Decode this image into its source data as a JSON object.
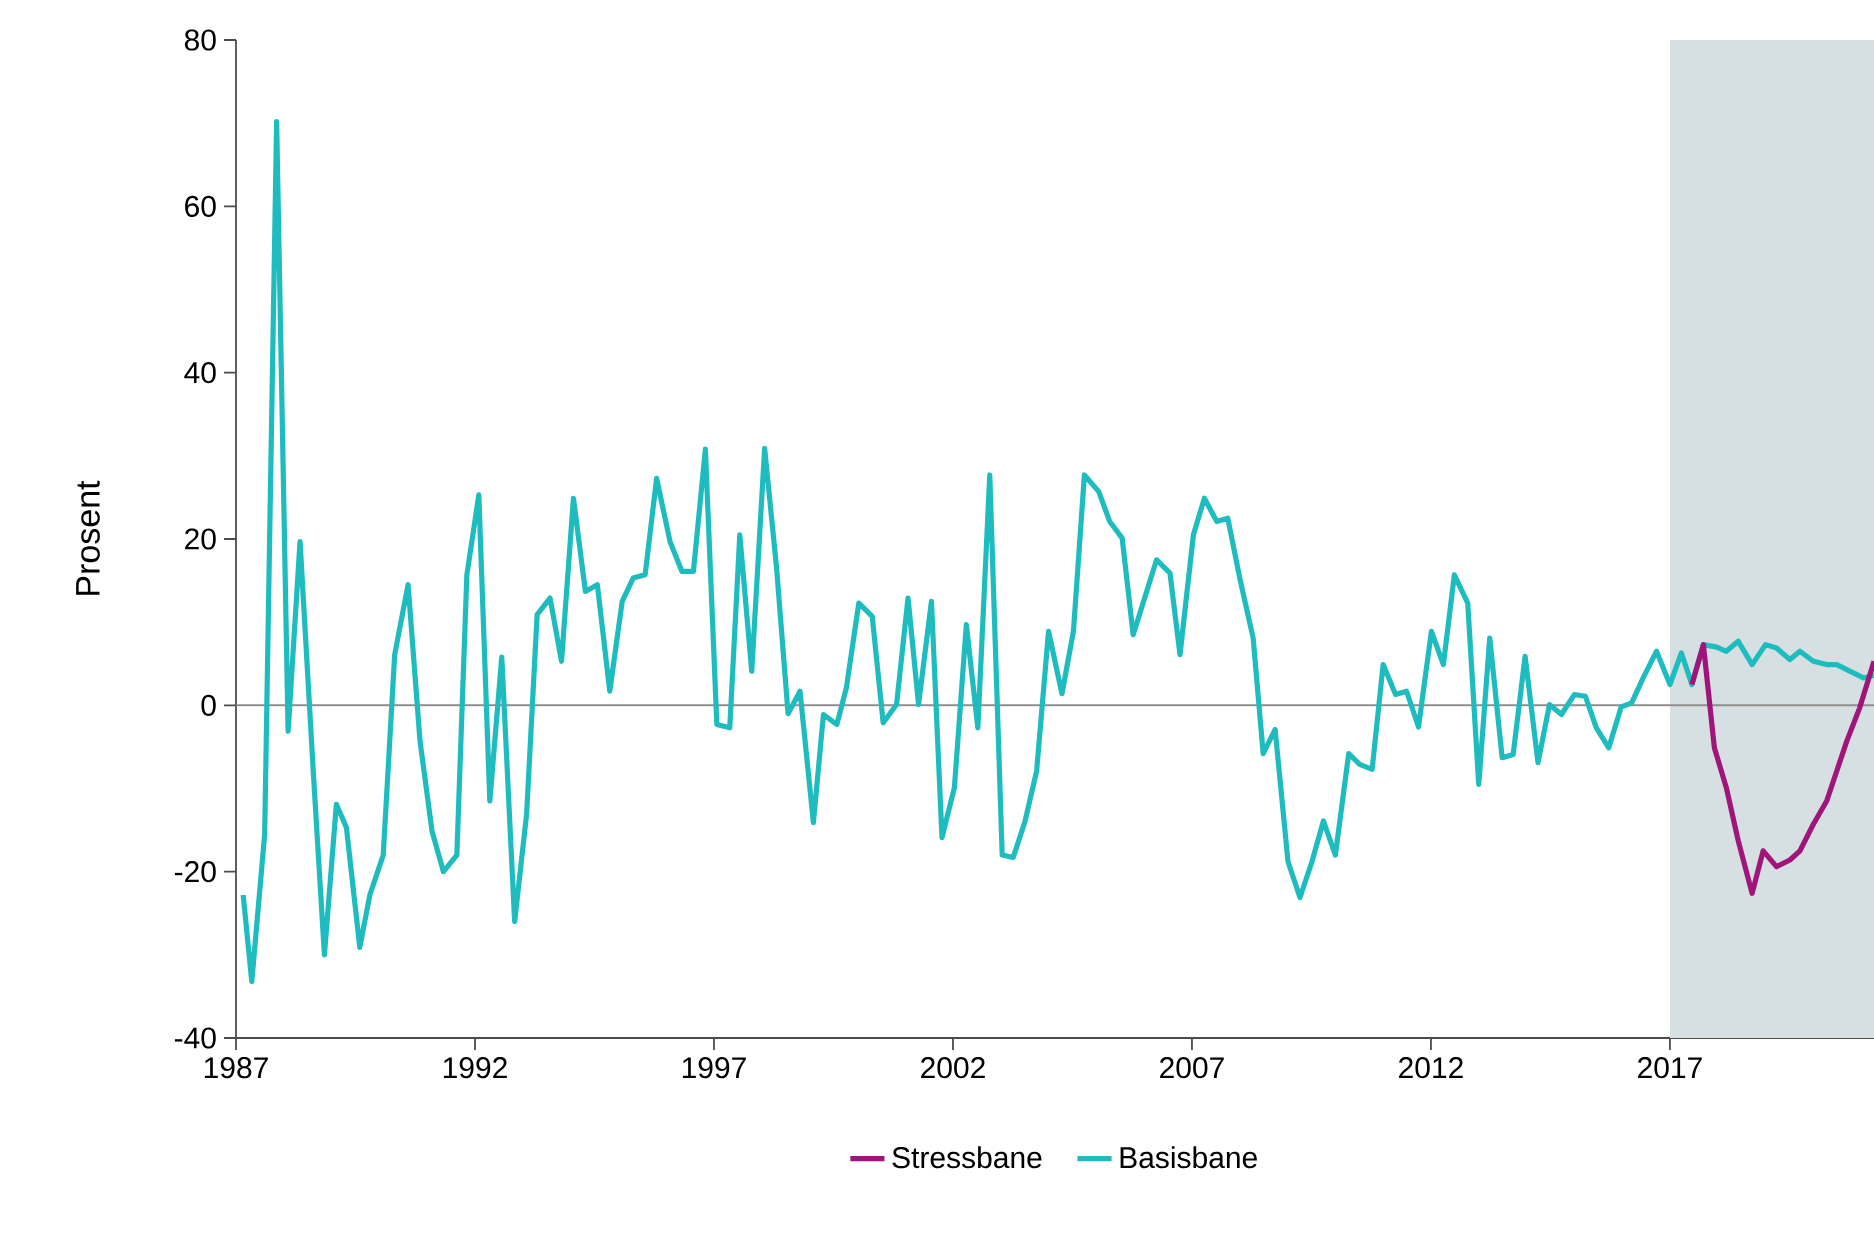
{
  "chart_data": {
    "type": "line",
    "ylabel": "Prosent",
    "xlim": [
      1987,
      2021.27
    ],
    "xticks": [
      1987,
      1992,
      1997,
      2002,
      2007,
      2012,
      2017
    ],
    "ylim": [
      -40,
      80
    ],
    "yticks": [
      -40,
      -20,
      0,
      20,
      40,
      60,
      80
    ],
    "legend": "bottom",
    "grid": false,
    "ref_lines": [
      {
        "axis": "y",
        "value": 0,
        "color": "#8c8c8c"
      }
    ],
    "bands": [
      {
        "axis": "x",
        "from": 2017,
        "to": 2021.27,
        "color": "#d6dfe2"
      }
    ],
    "series": [
      {
        "name": "Stressbane",
        "color": "#a0157a",
        "x": [
          2017.46,
          2017.7,
          2017.93,
          2018.18,
          2018.43,
          2018.72,
          2018.95,
          2019.23,
          2019.51,
          2019.72,
          2020.0,
          2020.28,
          2020.49,
          2020.7,
          2020.97,
          2021.27
        ],
        "values": [
          2.5,
          7.3,
          -5.1,
          -9.9,
          -16.3,
          -22.6,
          -17.5,
          -19.4,
          -18.6,
          -17.5,
          -14.3,
          -11.5,
          -7.9,
          -4.3,
          -0.3,
          5.3
        ]
      },
      {
        "name": "Basisbane",
        "color": "#1fbcbf",
        "x": [
          1987.15,
          1987.33,
          1987.6,
          1987.85,
          1988.09,
          1988.34,
          1988.62,
          1988.85,
          1989.1,
          1989.31,
          1989.59,
          1989.8,
          1990.08,
          1990.32,
          1990.6,
          1990.85,
          1991.1,
          1991.34,
          1991.62,
          1991.83,
          1992.08,
          1992.31,
          1992.56,
          1992.83,
          1993.08,
          1993.3,
          1993.57,
          1993.81,
          1994.06,
          1994.31,
          1994.56,
          1994.82,
          1995.08,
          1995.31,
          1995.56,
          1995.8,
          1996.08,
          1996.33,
          1996.57,
          1996.82,
          1997.06,
          1997.33,
          1997.54,
          1997.79,
          1998.06,
          1998.31,
          1998.55,
          1998.8,
          1999.08,
          1999.29,
          1999.57,
          1999.77,
          2000.03,
          2000.31,
          2000.54,
          2000.82,
          2001.06,
          2001.28,
          2001.55,
          2001.77,
          2002.03,
          2002.28,
          2002.52,
          2002.77,
          2003.03,
          2003.26,
          2003.51,
          2003.75,
          2004.0,
          2004.28,
          2004.52,
          2004.75,
          2005.05,
          2005.28,
          2005.54,
          2005.77,
          2006.26,
          2006.54,
          2006.75,
          2007.03,
          2007.26,
          2007.52,
          2007.75,
          2008.0,
          2008.28,
          2008.49,
          2008.74,
          2009.01,
          2009.26,
          2009.51,
          2009.75,
          2010.0,
          2010.28,
          2010.51,
          2010.77,
          2011.0,
          2011.26,
          2011.49,
          2011.74,
          2012.01,
          2012.26,
          2012.49,
          2012.77,
          2013.0,
          2013.23,
          2013.49,
          2013.72,
          2013.97,
          2014.24,
          2014.48,
          2014.73,
          2015.0,
          2015.23,
          2015.46,
          2015.72,
          2015.98,
          2016.2,
          2016.44,
          2016.72,
          2017.0,
          2017.24,
          2017.46,
          2017.7,
          2017.98,
          2018.18,
          2018.43,
          2018.72,
          2019.0,
          2019.23,
          2019.51,
          2019.72,
          2020.0,
          2020.28,
          2020.49,
          2020.7,
          2021.05,
          2021.27
        ],
        "values": [
          -22.8,
          -33.2,
          -15.5,
          70.2,
          -3.1,
          19.7,
          -8.3,
          -30,
          -11.9,
          -14.7,
          -29.1,
          -22.8,
          -18,
          6.1,
          14.5,
          -4.3,
          -15.1,
          -20,
          -18,
          15.7,
          25.3,
          -11.5,
          5.8,
          -26,
          -13.1,
          10.9,
          12.9,
          5.3,
          24.9,
          13.7,
          14.5,
          1.7,
          12.5,
          15.3,
          15.7,
          27.3,
          19.7,
          16.1,
          16.1,
          30.8,
          -2.3,
          -2.7,
          20.5,
          4.1,
          30.9,
          16.5,
          -1,
          1.7,
          -14.1,
          -1.1,
          -2.3,
          2.1,
          12.3,
          10.7,
          -2.1,
          0.1,
          12.9,
          0.1,
          12.5,
          -15.9,
          -9.9,
          9.7,
          -2.7,
          27.7,
          -18,
          -18.3,
          -13.9,
          -7.9,
          8.9,
          1.4,
          8.9,
          27.7,
          25.7,
          22.1,
          20.1,
          8.5,
          17.5,
          15.9,
          6.1,
          20.5,
          24.9,
          22.1,
          22.5,
          15.3,
          8.1,
          -5.8,
          -2.9,
          -18.8,
          -23.1,
          -18.8,
          -13.9,
          -18,
          -5.8,
          -7.1,
          -7.7,
          4.9,
          1.3,
          1.7,
          -2.6,
          8.9,
          4.9,
          15.7,
          12.3,
          -9.5,
          8.1,
          -6.3,
          -5.9,
          5.9,
          -6.9,
          0.1,
          -1.1,
          1.3,
          1.1,
          -2.7,
          -5.1,
          -0.2,
          0.3,
          3.3,
          6.5,
          2.5,
          6.3,
          2.5,
          7.3,
          7,
          6.5,
          7.7,
          4.9,
          7.3,
          6.9,
          5.5,
          6.5,
          5.3,
          4.9,
          4.9,
          4.3,
          3.3,
          3.6
        ]
      }
    ]
  }
}
